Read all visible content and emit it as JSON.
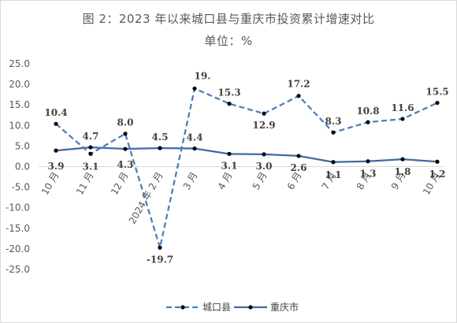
{
  "title": {
    "line1": "图 2：2023 年以来城口县与重庆市投资累计增速对比",
    "line2": "单位：%"
  },
  "chart_data": {
    "type": "line",
    "title": "图 2：2023 年以来城口县与重庆市投资累计增速对比",
    "subtitle": "单位：%",
    "categories": [
      "10 月",
      "11 月",
      "12 月",
      "2024 年 2 月",
      "3 月",
      "4 月",
      "5 月",
      "6 月",
      "7 月",
      "8 月",
      "9 月",
      "10 月"
    ],
    "series": [
      {
        "name": "城口县",
        "values": [
          10.4,
          3.1,
          8.0,
          -19.7,
          19.0,
          15.3,
          12.9,
          17.2,
          8.3,
          10.8,
          11.6,
          15.5
        ],
        "labels": [
          "10.4",
          "3.1",
          "8.0",
          "-19.7",
          "19.",
          "15.3",
          "12.9",
          "17.2",
          "8.3",
          "10.8",
          "11.6",
          "15.5"
        ],
        "color": "#4a7ebb",
        "style": "dashed"
      },
      {
        "name": "重庆市",
        "values": [
          3.9,
          4.7,
          4.3,
          4.5,
          4.4,
          3.1,
          3.0,
          2.6,
          1.1,
          1.3,
          1.8,
          1.2
        ],
        "labels": [
          "3.9",
          "4.7",
          "4.3",
          "4.5",
          "4.4",
          "3.1",
          "3.0",
          "2.6",
          "1.1",
          "1.3",
          "1.8",
          "1.2"
        ],
        "color": "#3f6aa2",
        "style": "solid"
      }
    ],
    "yticks": [
      "25.0",
      "20.0",
      "15.0",
      "10.0",
      "5.0",
      "0.0",
      "-5.0",
      "-10.0",
      "-15.0",
      "-20.0",
      "-25.0"
    ],
    "ylim": [
      -25,
      25
    ],
    "grid": false,
    "legend_position": "bottom"
  }
}
